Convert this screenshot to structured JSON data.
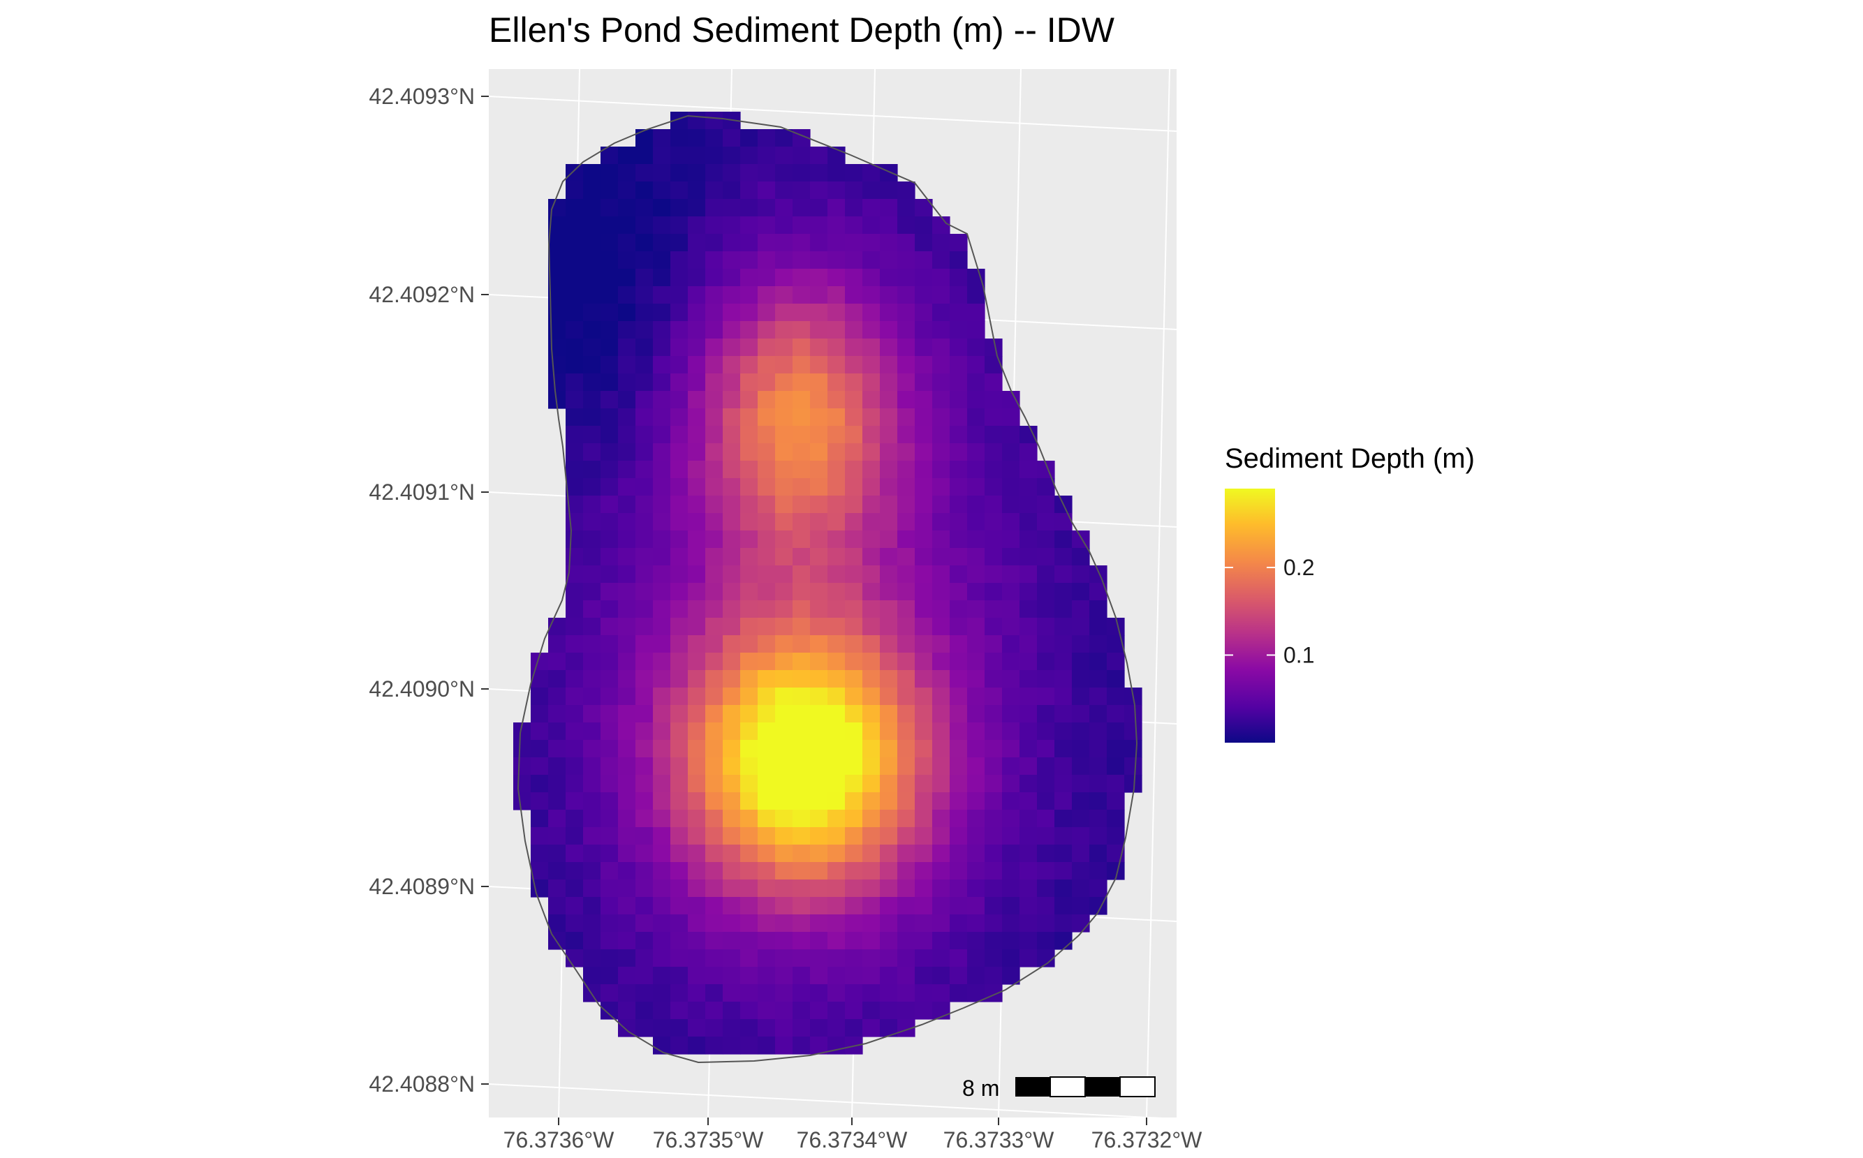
{
  "chart_data": {
    "type": "heatmap",
    "title": "Ellen's Pond Sediment Depth (m) -- IDW",
    "x_ticks": [
      "76.3736°W",
      "76.3735°W",
      "76.3734°W",
      "76.3733°W",
      "76.3732°W"
    ],
    "y_ticks": [
      "42.4093°N",
      "42.4092°N",
      "42.4091°N",
      "42.4090°N",
      "42.4089°N",
      "42.4088°N"
    ],
    "legend": {
      "title": "Sediment Depth (m)",
      "ticks": [
        {
          "label": "0.2",
          "value": 0.2
        },
        {
          "label": "0.1",
          "value": 0.1
        }
      ],
      "range": [
        0.0,
        0.29
      ],
      "colormap": "plasma",
      "placement": "right"
    },
    "scale_bar": {
      "label": "8 m"
    },
    "panel_background": "#ebebeb",
    "grid": true,
    "surface": {
      "description_units": "sediment depth in metres, interpolated by IDW",
      "peak_depth": 0.29,
      "upper_lobe_peak_depth": 0.19,
      "minimum_depth": 0.0
    }
  }
}
